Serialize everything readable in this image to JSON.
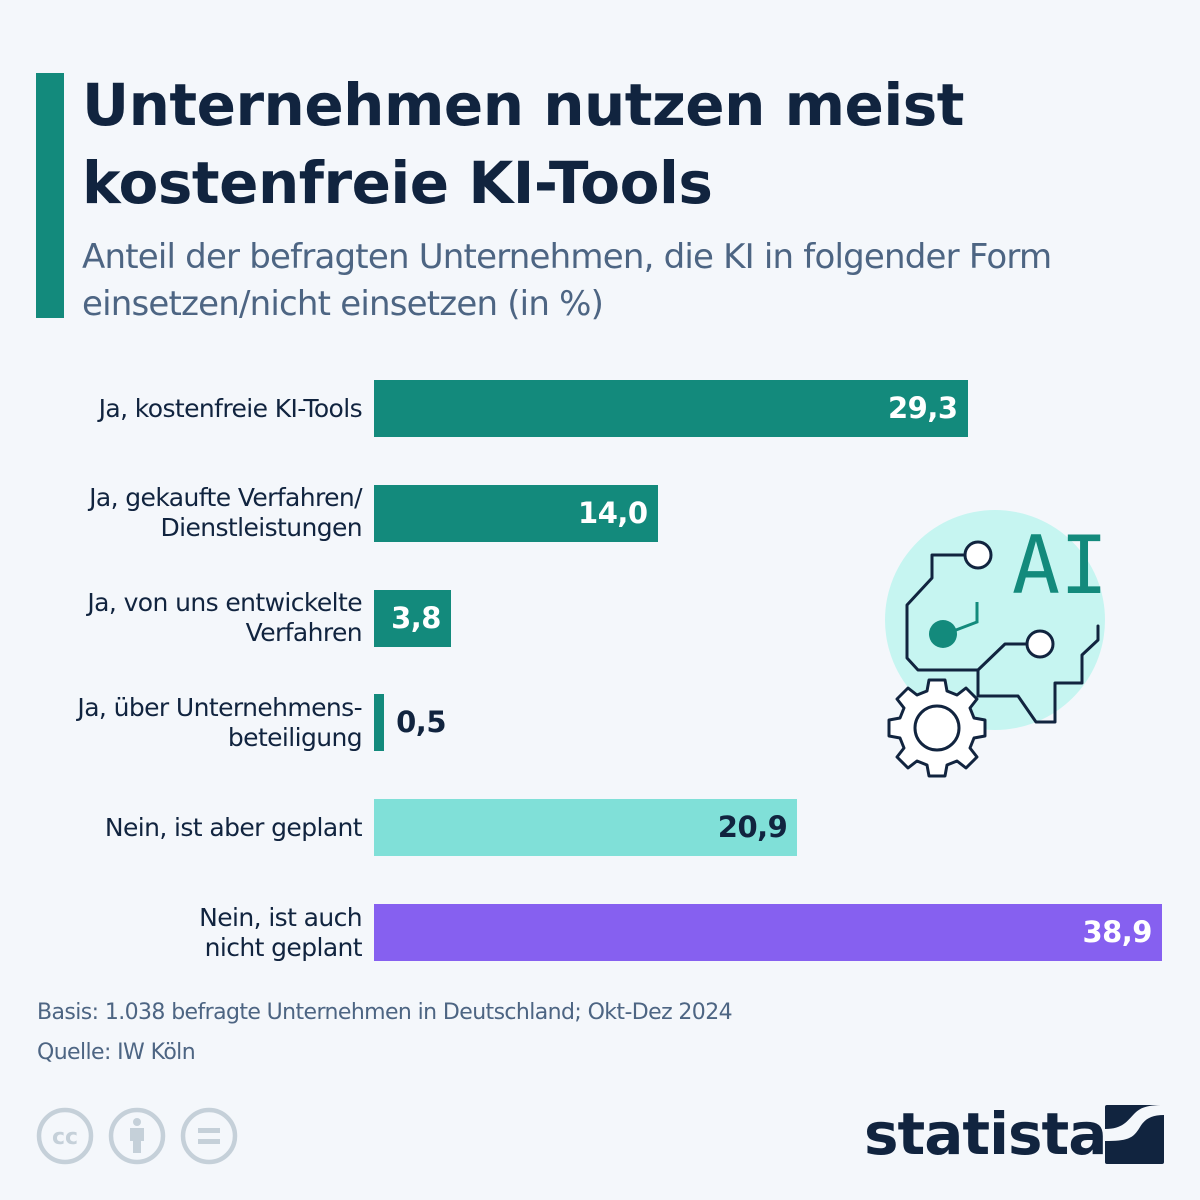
{
  "header": {
    "title_line1": "Unternehmen nutzen meist",
    "title_line2": "kostenfreie KI-Tools",
    "subtitle_line1": "Anteil der befragten Unternehmen, die KI in folgender Form",
    "subtitle_line2": "einsetzen/nicht einsetzen (in %)",
    "accent_color": "#138a7c"
  },
  "chart_data": {
    "type": "bar",
    "orientation": "horizontal",
    "title": "Unternehmen nutzen meist kostenfreie KI-Tools",
    "subtitle": "Anteil der befragten Unternehmen, die KI in folgender Form einsetzen/nicht einsetzen (in %)",
    "xlabel": "",
    "ylabel": "",
    "unit": "%",
    "xlim": [
      0,
      38.9
    ],
    "grid": false,
    "legend": "none",
    "categories": [
      [
        "Ja, kostenfreie KI-Tools"
      ],
      [
        "Ja, gekaufte Verfahren/",
        "Dienstleistungen"
      ],
      [
        "Ja, von uns entwickelte",
        "Verfahren"
      ],
      [
        "Ja, über Unternehmens-",
        "beteiligung"
      ],
      [
        "Nein, ist aber geplant"
      ],
      [
        "Nein, ist auch",
        "nicht geplant"
      ]
    ],
    "values": [
      29.3,
      14.0,
      3.8,
      0.5,
      20.9,
      38.9
    ],
    "value_labels": [
      "29,3",
      "14,0",
      "3,8",
      "0,5",
      "20,9",
      "38,9"
    ],
    "colors": [
      "#138a7c",
      "#138a7c",
      "#138a7c",
      "#138a7c",
      "#80e0d8",
      "#8660f0"
    ],
    "label_colors": [
      "#ffffff",
      "#ffffff",
      "#ffffff",
      "#11243f",
      "#11243f",
      "#ffffff"
    ]
  },
  "illustration": {
    "icon": "ai-circuit-gear-icon",
    "text": "AI"
  },
  "footer": {
    "basis": "Basis: 1.038 befragte Unternehmen in Deutschland; Okt-Dez 2024",
    "source": "Quelle: IW Köln",
    "license_icons": [
      "cc-icon",
      "attribution-icon",
      "no-derivatives-icon"
    ],
    "brand": "statista"
  }
}
